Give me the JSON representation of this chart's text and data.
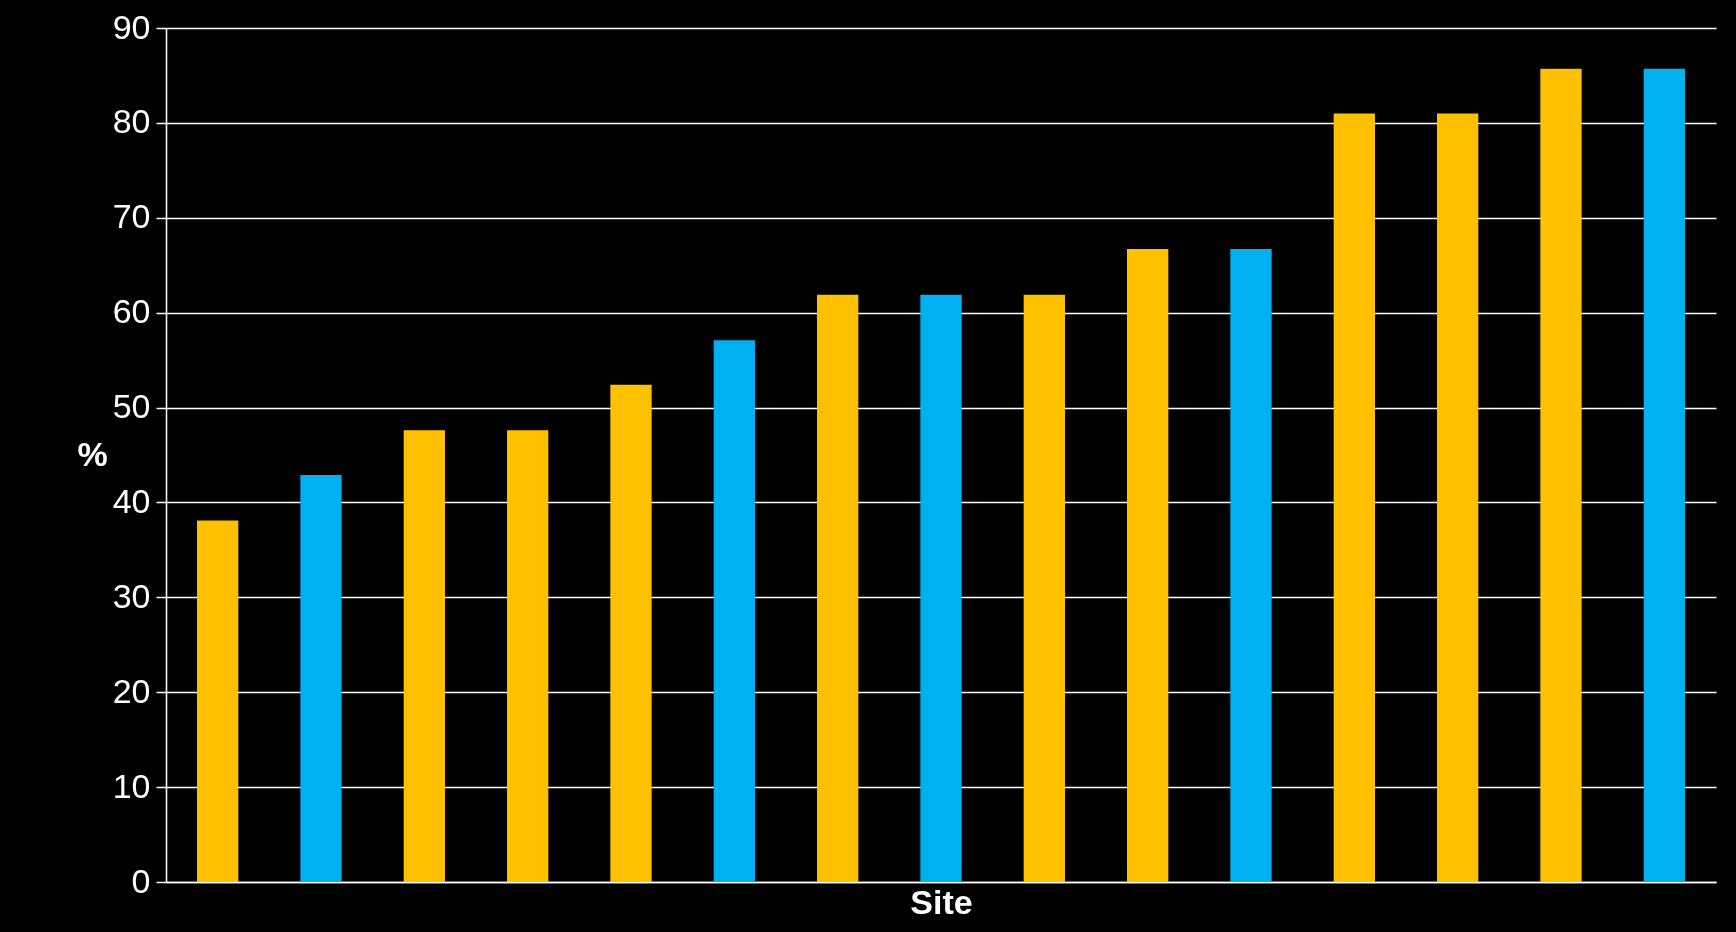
{
  "chart_data": {
    "type": "bar",
    "xlabel": "Site",
    "ylabel": "%",
    "categories": [
      null,
      null,
      null,
      null,
      null,
      null,
      null,
      null,
      null,
      null,
      null,
      null,
      null,
      null,
      null
    ],
    "values": [
      38.1,
      42.9,
      47.6,
      47.6,
      52.4,
      57.1,
      61.9,
      61.9,
      61.9,
      66.7,
      66.7,
      81.0,
      81.0,
      85.7,
      85.7
    ],
    "colors": [
      "#ffc000",
      "#00b0f0",
      "#ffc000",
      "#ffc000",
      "#ffc000",
      "#00b0f0",
      "#ffc000",
      "#00b0f0",
      "#ffc000",
      "#ffc000",
      "#00b0f0",
      "#ffc000",
      "#ffc000",
      "#ffc000",
      "#00b0f0"
    ],
    "ylim": [
      0,
      90
    ],
    "yticks": [
      0,
      10,
      20,
      30,
      40,
      50,
      60,
      70,
      80,
      90
    ],
    "grid": "y",
    "tick_labels": "y"
  }
}
